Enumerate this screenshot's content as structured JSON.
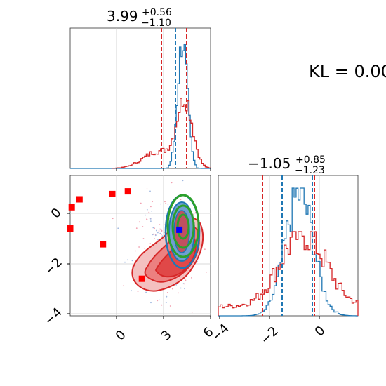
{
  "kl_text": "KL = 0.00",
  "titles": {
    "p1": {
      "base": "3.99",
      "sup": "+0.56",
      "sub": "−1.10"
    },
    "p2": {
      "base": "−1.05",
      "sup": "+0.85",
      "sub": "−1.23"
    }
  },
  "colors": {
    "blue": "#1f77b4",
    "red": "#d62728",
    "green": "#2ca02c",
    "marker_red": "#ff0000",
    "marker_blue": "#0000ff",
    "grid": "#cccccc"
  },
  "chart_data": [
    {
      "type": "histogram",
      "panel": "top-left",
      "variable": "param1",
      "xlim": [
        -3,
        6
      ],
      "grid": true,
      "series": [
        {
          "color": "blue",
          "peak": 4.3,
          "quantiles": [
            3.8
          ]
        },
        {
          "color": "red",
          "peak": 4.2,
          "quantiles": [
            2.89,
            4.55
          ]
        }
      ]
    },
    {
      "type": "histogram",
      "panel": "bottom-right",
      "variable": "param2",
      "xlim": [
        -4,
        2
      ],
      "xticks": [
        "−4",
        "−2",
        "0"
      ],
      "grid": true,
      "series": [
        {
          "color": "blue",
          "peak": -0.6,
          "quantiles": [
            -1.6,
            -0.3
          ]
        },
        {
          "color": "red",
          "peak": -0.5,
          "quantiles": [
            -2.3,
            -0.2
          ]
        }
      ]
    },
    {
      "type": "scatter",
      "panel": "bottom-left",
      "xlim": [
        -3,
        6
      ],
      "ylim": [
        -4.1,
        1.2
      ],
      "xticks": [
        "0",
        "3",
        "6"
      ],
      "yticks": [
        "−4",
        "−2",
        "0"
      ],
      "grid": true,
      "red_points": [
        [
          -2.9,
          0.0
        ],
        [
          -2.4,
          0.3
        ],
        [
          -0.3,
          0.5
        ],
        [
          0.7,
          0.6
        ],
        [
          -0.9,
          -1.4
        ],
        [
          1.6,
          -2.7
        ],
        [
          -3.0,
          -0.8
        ]
      ],
      "blue_points": [
        [
          4.0,
          -0.85
        ]
      ],
      "contours": [
        "red",
        "blue",
        "green"
      ]
    }
  ]
}
